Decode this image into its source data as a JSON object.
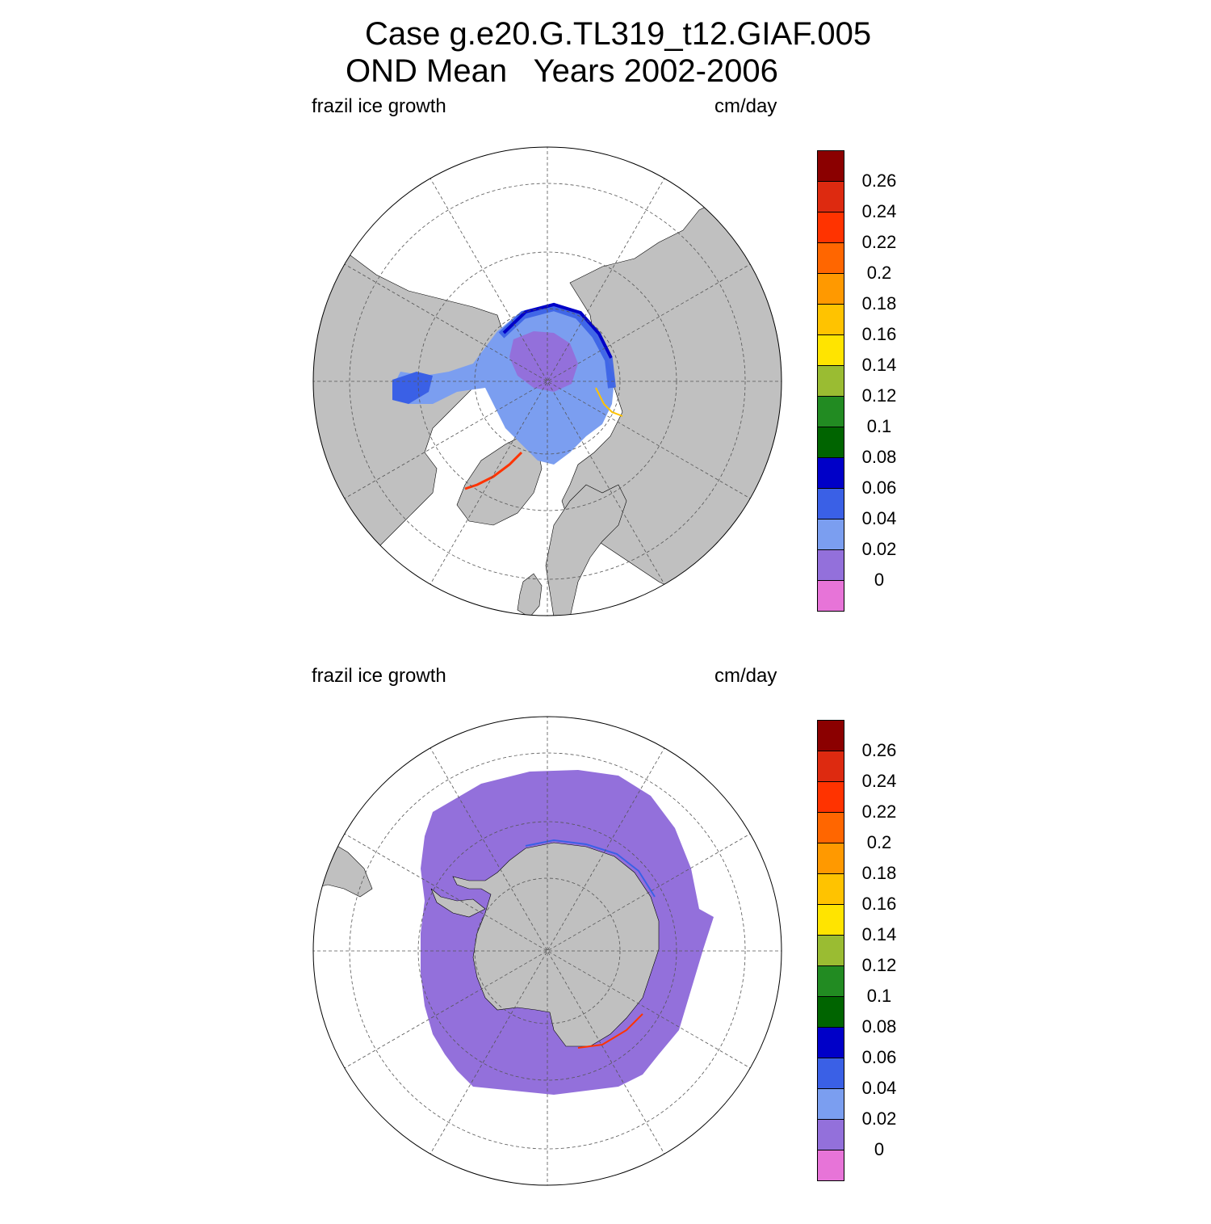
{
  "figure": {
    "title_line1": "Case g.e20.G.TL319_t12.GIAF.005",
    "title_line2": "OND Mean   Years 2002-2006"
  },
  "panels": [
    {
      "id": "north",
      "left_label": "frazil ice growth",
      "right_label": "cm/day",
      "hemisphere": "Northern Hemisphere polar stereographic",
      "colors": {
        "land": "#c0c0c0",
        "ocean": "#ffffff"
      }
    },
    {
      "id": "south",
      "left_label": "frazil ice growth",
      "right_label": "cm/day",
      "hemisphere": "Southern Hemisphere polar stereographic",
      "colors": {
        "land": "#c0c0c0",
        "ocean": "#ffffff"
      }
    }
  ],
  "colorbar": {
    "levels": [
      "0",
      "0.02",
      "0.04",
      "0.06",
      "0.08",
      "0.1",
      "0.12",
      "0.14",
      "0.16",
      "0.18",
      "0.2",
      "0.22",
      "0.24",
      "0.26"
    ],
    "colors": [
      "#e774d8",
      "#9370db",
      "#7b9ef0",
      "#3a60e6",
      "#0000c8",
      "#006400",
      "#228b22",
      "#9abc32",
      "#ffe400",
      "#ffc300",
      "#ff9900",
      "#ff6600",
      "#ff3300",
      "#dd2a10",
      "#8b0000"
    ]
  }
}
